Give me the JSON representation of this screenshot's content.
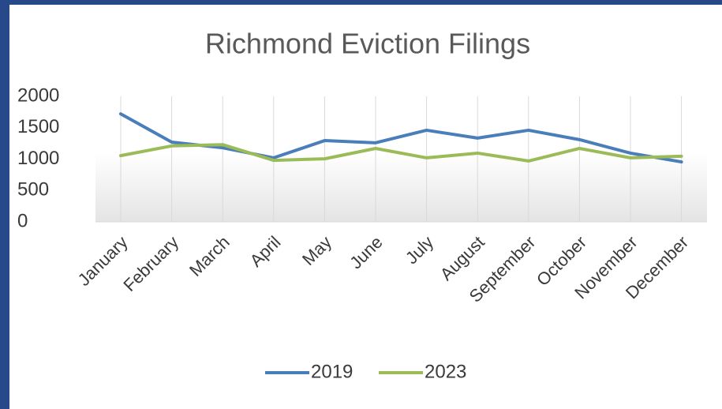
{
  "chart_data": {
    "type": "line",
    "title": "Richmond Eviction Filings",
    "categories": [
      "January",
      "February",
      "March",
      "April",
      "May",
      "June",
      "July",
      "August",
      "September",
      "October",
      "November",
      "December"
    ],
    "series": [
      {
        "name": "2019",
        "color": "#4a7ebb",
        "values": [
          1720,
          1270,
          1180,
          1020,
          1295,
          1260,
          1460,
          1335,
          1460,
          1310,
          1095,
          955
        ]
      },
      {
        "name": "2023",
        "color": "#9bbb59",
        "values": [
          1055,
          1210,
          1230,
          980,
          1005,
          1170,
          1020,
          1095,
          970,
          1170,
          1020,
          1045
        ]
      }
    ],
    "ylim": [
      0,
      2000
    ],
    "yticks": [
      0,
      500,
      1000,
      1500,
      2000
    ],
    "xgrid": true,
    "legend": "bottom"
  }
}
